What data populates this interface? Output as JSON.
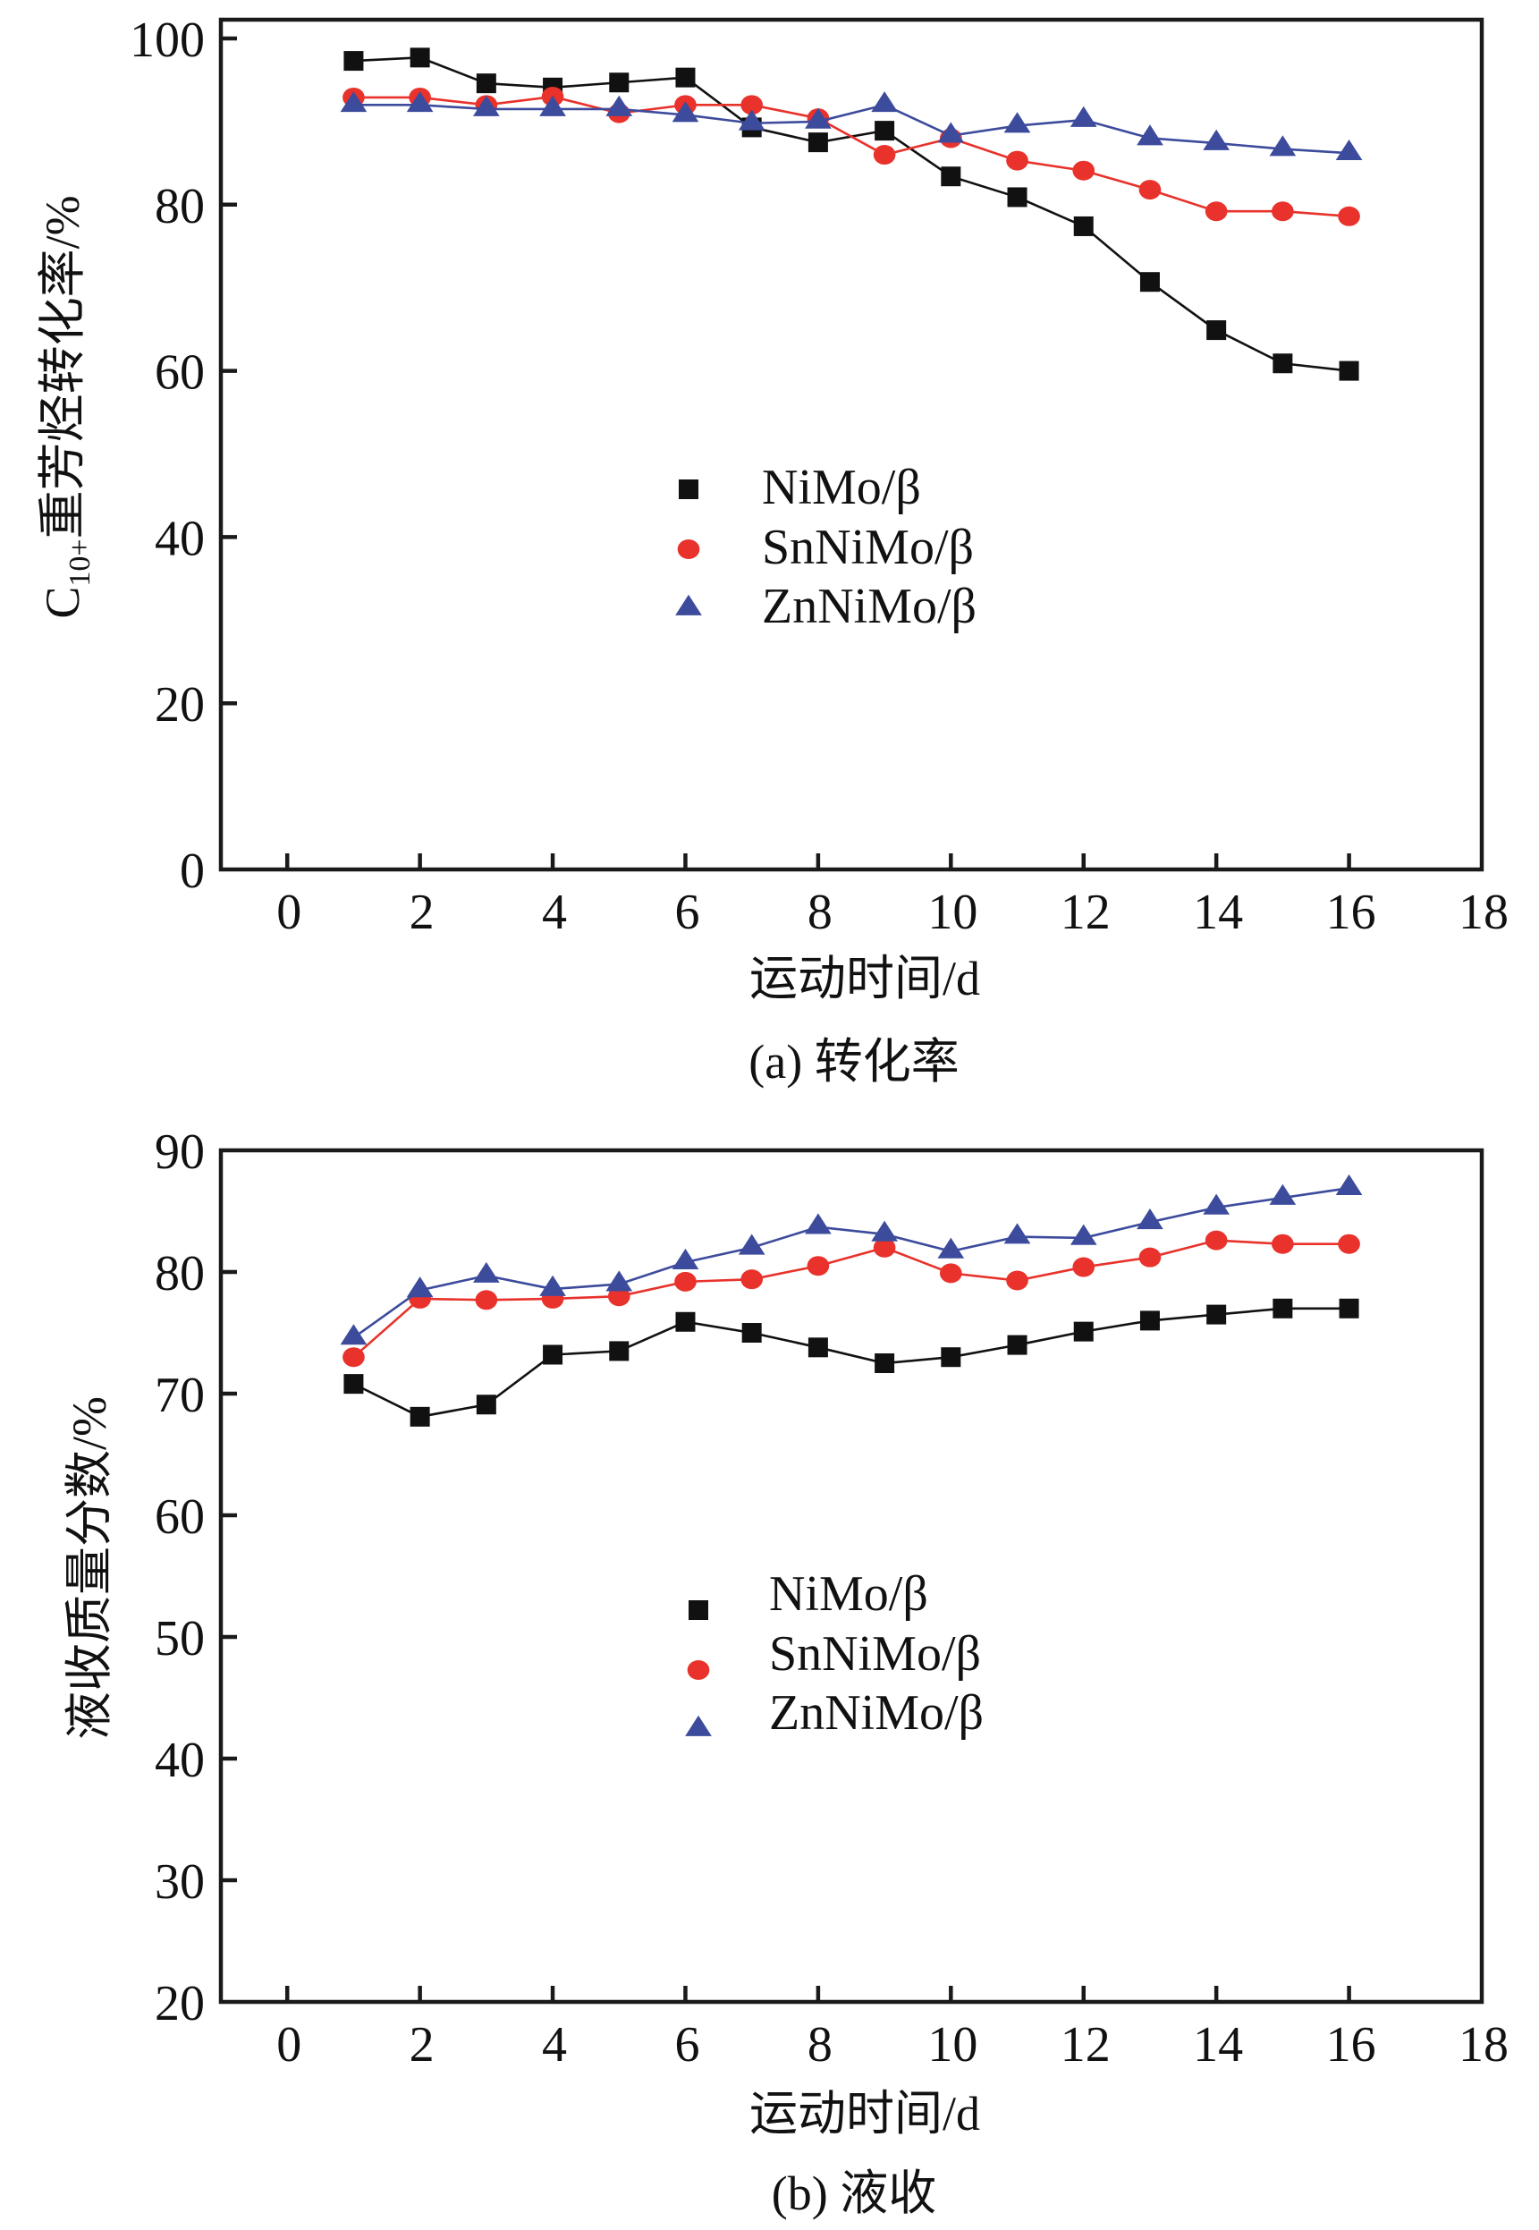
{
  "chart_data": [
    {
      "type": "line",
      "title": "",
      "caption": "(a) 转化率",
      "xlabel": "运动时间/d",
      "ylabel_main": "C",
      "ylabel_sub": "10+",
      "ylabel_rest": "重芳烃转化率/%",
      "xlim": [
        -1,
        18
      ],
      "ylim": [
        0,
        100
      ],
      "xticks": [
        0,
        2,
        4,
        6,
        8,
        10,
        12,
        14,
        16,
        18
      ],
      "yticks": [
        0,
        20,
        40,
        60,
        80,
        100
      ],
      "grid": false,
      "legend_position": "center",
      "x": [
        1,
        2,
        3,
        4,
        5,
        6,
        7,
        8,
        9,
        10,
        11,
        12,
        13,
        14,
        15,
        16
      ],
      "series": [
        {
          "name": "NiMo/β",
          "marker": "square",
          "color": "#111111",
          "values": [
            97.3,
            97.7,
            94.6,
            94.1,
            94.7,
            95.3,
            89.3,
            87.5,
            88.9,
            83.4,
            80.9,
            77.4,
            70.7,
            64.9,
            60.9,
            60.0
          ]
        },
        {
          "name": "SnNiMo/β",
          "marker": "circle",
          "color": "#e8322b",
          "values": [
            92.9,
            92.9,
            92.0,
            93.0,
            91.0,
            92.0,
            92.0,
            90.4,
            86.0,
            88.0,
            85.3,
            84.1,
            81.8,
            79.2,
            79.2,
            78.6
          ]
        },
        {
          "name": "ZnNiMo/β",
          "marker": "triangle",
          "color": "#3d4b9c",
          "values": [
            92.0,
            92.0,
            91.5,
            91.5,
            91.5,
            90.8,
            89.8,
            90.0,
            92.0,
            88.3,
            89.5,
            90.2,
            88.0,
            87.4,
            86.7,
            86.2
          ]
        }
      ]
    },
    {
      "type": "line",
      "title": "",
      "caption": "(b) 液收",
      "xlabel": "运动时间/d",
      "ylabel_main": "",
      "ylabel_sub": "",
      "ylabel_rest": "液收质量分数/%",
      "xlim": [
        -1,
        18
      ],
      "ylim": [
        20,
        90
      ],
      "xticks": [
        0,
        2,
        4,
        6,
        8,
        10,
        12,
        14,
        16,
        18
      ],
      "yticks": [
        20,
        30,
        40,
        50,
        60,
        70,
        80,
        90
      ],
      "grid": false,
      "legend_position": "center",
      "x": [
        1,
        2,
        3,
        4,
        5,
        6,
        7,
        8,
        9,
        10,
        11,
        12,
        13,
        14,
        15,
        16
      ],
      "series": [
        {
          "name": "NiMo/β",
          "marker": "square",
          "color": "#111111",
          "values": [
            70.8,
            68.1,
            69.1,
            73.2,
            73.5,
            75.9,
            75.0,
            73.8,
            72.5,
            73.0,
            74.0,
            75.1,
            76.0,
            76.5,
            77.0,
            77.0
          ]
        },
        {
          "name": "SnNiMo/β",
          "marker": "circle",
          "color": "#e8322b",
          "values": [
            73.0,
            77.8,
            77.7,
            77.8,
            78.0,
            79.2,
            79.4,
            80.5,
            82.0,
            79.9,
            79.3,
            80.4,
            81.2,
            82.6,
            82.3,
            82.3
          ]
        },
        {
          "name": "ZnNiMo/β",
          "marker": "triangle",
          "color": "#3d4b9c",
          "values": [
            74.6,
            78.5,
            79.7,
            78.6,
            79.0,
            80.8,
            82.0,
            83.7,
            83.1,
            81.7,
            82.9,
            82.8,
            84.1,
            85.3,
            86.1,
            86.9
          ]
        }
      ]
    }
  ]
}
